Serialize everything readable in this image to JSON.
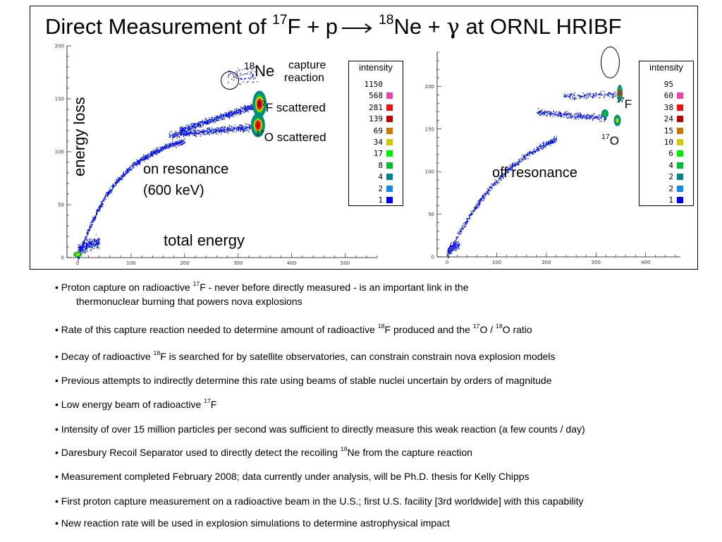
{
  "title": {
    "pre": "Direct Measurement of ",
    "sup1": "17",
    "mid": "F + p",
    "sup2": "18",
    "post1": "Ne + ",
    "gamma": "γ",
    "post2": " at ORNL HRIBF"
  },
  "chart_data": [
    {
      "type": "heatmap",
      "panel": "on resonance",
      "xlabel": "total energy",
      "ylabel": "energy loss",
      "xlim": [
        -20,
        560
      ],
      "ylim": [
        0,
        200
      ],
      "xticks": [
        "0",
        "100",
        "200",
        "300",
        "400",
        "500"
      ],
      "yticks": [
        "0",
        "50",
        "100",
        "150",
        "200"
      ],
      "annotations": {
        "ne_sup": "18",
        "ne_text": "Ne",
        "capture": "capture",
        "reaction": "reaction",
        "f_sup": "17",
        "f_text": "F",
        "f_scattered": "scattered",
        "o_sup": "17",
        "o_text": "O",
        "o_scattered": "scattered",
        "resonance1": "on resonance",
        "resonance2": "(600 keV)"
      },
      "bands": [
        {
          "name": "17F",
          "peak": [
            340,
            145
          ]
        },
        {
          "name": "17O",
          "peak": [
            337,
            125
          ]
        },
        {
          "name": "18Ne",
          "peak": [
            315,
            172
          ]
        }
      ],
      "legend": {
        "title": "intensity",
        "levels": [
          "1150",
          "568",
          "281",
          "139",
          "69",
          "34",
          "17",
          "8",
          "4",
          "2",
          "1"
        ],
        "colors": [
          "#ffffff",
          "#ee44aa",
          "#ee1111",
          "#bb0000",
          "#cc7700",
          "#cccc00",
          "#00ee00",
          "#00bb33",
          "#008888",
          "#1188ee",
          "#0000ee"
        ]
      }
    },
    {
      "type": "heatmap",
      "panel": "off resonance",
      "xlim": [
        -20,
        470
      ],
      "ylim": [
        0,
        240
      ],
      "xticks": [
        "0",
        "100",
        "200",
        "300",
        "400"
      ],
      "yticks": [
        "0",
        "50",
        "100",
        "150",
        "200"
      ],
      "annotations": {
        "f_sup": "17",
        "f_text": "F",
        "o_sup": "17",
        "o_text": "O",
        "resonance": "off resonance"
      },
      "bands": [
        {
          "name": "17F",
          "peak": [
            348,
            192
          ]
        },
        {
          "name": "17O",
          "peak": [
            343,
            160
          ]
        }
      ],
      "legend": {
        "title": "intensity",
        "levels": [
          "95",
          "60",
          "38",
          "24",
          "15",
          "10",
          "6",
          "4",
          "2",
          "2",
          "1"
        ],
        "colors": [
          "#ffffff",
          "#ee44aa",
          "#ee1111",
          "#bb0000",
          "#cc7700",
          "#cccc00",
          "#00ee00",
          "#00bb33",
          "#008888",
          "#1188ee",
          "#0000ee"
        ]
      }
    }
  ],
  "bullets": [
    {
      "a": "• Proton capture on radioactive ",
      "s1": "17",
      "b": "F - never before directly measured - is an important link in the",
      "c": "thermonuclear burning that powers nova explosions"
    },
    {
      "a": "• Rate of this capture reaction needed to determine amount of radioactive ",
      "s1": "18",
      "b": "F produced and the ",
      "s2": "17",
      "c": "O / ",
      "s3": "18",
      "d": "O ratio"
    },
    {
      "a": "• Decay of  radioactive ",
      "s1": "18",
      "b": "F is searched for by satellite observatories, can constrain constrain nova explosion models"
    },
    {
      "a": "• Previous attempts to indirectly determine this rate using beams of stable nuclei uncertain by orders of magnitude"
    },
    {
      "a": "• Low energy beam of radioactive ",
      "s1": "17",
      "b": "F"
    },
    {
      "a": "• Intensity of over 15 million particles per second was sufficient to directly measure this weak reaction (a few counts / day)"
    },
    {
      "a": "• Daresbury Recoil Separator used to directly detect the recoiling ",
      "s1": "18",
      "b": "Ne from the capture reaction"
    },
    {
      "a": "• Measurement completed February 2008; data currently under analysis, will be Ph.D. thesis for Kelly Chipps"
    },
    {
      "a": "• First proton capture measurement on a radioactive beam in the U.S.; first U.S. facility [3rd worldwide] with this capability"
    },
    {
      "a": "• New reaction rate will be used in explosion simulations to determine astrophysical impact"
    }
  ]
}
